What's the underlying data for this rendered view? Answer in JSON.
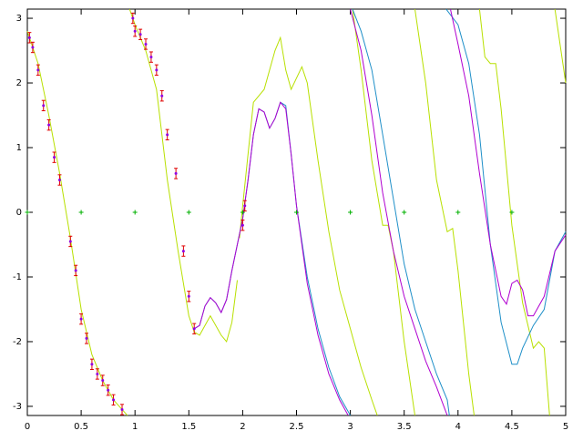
{
  "chart_data": {
    "type": "line",
    "xlim": [
      0,
      5
    ],
    "ylim": [
      -3.14159,
      3.14159
    ],
    "xticks": [
      0,
      0.5,
      1,
      1.5,
      2,
      2.5,
      3,
      3.5,
      4,
      4.5,
      5
    ],
    "yticks": [
      -3,
      -2,
      -1,
      0,
      1,
      2,
      3
    ],
    "series": [
      {
        "color": "#b8e000",
        "x": [
          0,
          0.1,
          0.2,
          0.3,
          0.4,
          0.5,
          0.6,
          0.7,
          0.8,
          0.93,
          0.94,
          0.95,
          1.0,
          1.1,
          1.2,
          1.3,
          1.4,
          1.5,
          1.55,
          1.6,
          1.7,
          1.8,
          1.85,
          1.9,
          1.95,
          1.96,
          1.97,
          2.0,
          2.1,
          2.2,
          2.3,
          2.35,
          2.4,
          2.45,
          2.55,
          2.6,
          2.7,
          2.8,
          2.9,
          3.0,
          3.1,
          3.2,
          3.25,
          3.1,
          3.02,
          3.1,
          3.2,
          3.3,
          3.35,
          3.4,
          3.5,
          3.6,
          3.6,
          3.6,
          3.7,
          3.8,
          3.9,
          3.95,
          4.0,
          4.1,
          4.15,
          4.17,
          4.2,
          4.25,
          4.3,
          4.35,
          4.4,
          4.5,
          4.6,
          4.7,
          4.75,
          4.8,
          4.85,
          4.87,
          4.9,
          5.0
        ],
        "values": [
          2.8,
          2.3,
          1.5,
          0.6,
          -0.4,
          -1.5,
          -2.2,
          -2.6,
          -2.9,
          -3.14,
          null,
          3.14,
          2.9,
          2.5,
          1.9,
          0.5,
          -0.6,
          -1.6,
          -1.85,
          -1.9,
          -1.6,
          -1.9,
          -2.0,
          -1.7,
          -1.05,
          null,
          -0.4,
          0.1,
          1.7,
          1.9,
          2.5,
          2.7,
          2.2,
          1.9,
          2.25,
          2.0,
          0.8,
          -0.3,
          -1.2,
          -1.8,
          -2.4,
          -2.9,
          -3.14,
          null,
          3.14,
          2.2,
          0.8,
          -0.2,
          -0.2,
          -0.6,
          -2.0,
          -3.14,
          null,
          3.14,
          2.0,
          0.5,
          -0.3,
          -0.25,
          -0.9,
          -2.5,
          -3.14,
          null,
          3.14,
          2.4,
          2.3,
          2.3,
          1.6,
          -0.2,
          -1.4,
          -2.1,
          -2.0,
          -2.1,
          -3.14,
          null,
          3.14,
          2.0
        ]
      },
      {
        "color": "#1e8fc8",
        "x": [
          1.55,
          1.6,
          1.65,
          1.7,
          1.75,
          1.8,
          1.85,
          1.9,
          2.0,
          2.05,
          2.1,
          2.15,
          2.2,
          2.25,
          2.3,
          2.35,
          2.4,
          2.45,
          2.5,
          2.6,
          2.7,
          2.8,
          2.9,
          3.0,
          3.01,
          3.02,
          3.1,
          3.2,
          3.3,
          3.4,
          3.5,
          3.6,
          3.7,
          3.8,
          3.9,
          3.92,
          3.9,
          3.89,
          4.0,
          4.1,
          4.2,
          4.3,
          4.4,
          4.5,
          4.55,
          4.6,
          4.7,
          4.8,
          4.9,
          5.0
        ],
        "values": [
          -1.8,
          -1.75,
          -1.45,
          -1.32,
          -1.4,
          -1.55,
          -1.35,
          -0.9,
          -0.1,
          0.5,
          1.2,
          1.6,
          1.55,
          1.3,
          1.45,
          1.7,
          1.65,
          0.9,
          0.1,
          -1.0,
          -1.8,
          -2.4,
          -2.85,
          -3.14,
          null,
          3.14,
          2.8,
          2.2,
          1.2,
          0.2,
          -0.8,
          -1.5,
          -2.0,
          -2.5,
          -2.9,
          -3.14,
          null,
          3.14,
          2.9,
          2.3,
          1.2,
          -0.5,
          -1.7,
          -2.35,
          -2.35,
          -2.1,
          -1.75,
          -1.5,
          -0.6,
          -0.3
        ]
      },
      {
        "color": "#b000d0",
        "x": [
          1.55,
          1.6,
          1.65,
          1.7,
          1.75,
          1.8,
          1.85,
          1.9,
          2.0,
          2.05,
          2.1,
          2.15,
          2.2,
          2.25,
          2.3,
          2.35,
          2.4,
          2.45,
          2.5,
          2.6,
          2.7,
          2.8,
          2.9,
          2.98,
          2.99,
          3.0,
          3.1,
          3.2,
          3.3,
          3.4,
          3.5,
          3.6,
          3.7,
          3.8,
          3.9,
          3.91,
          3.93,
          4.0,
          4.1,
          4.2,
          4.3,
          4.4,
          4.45,
          4.5,
          4.55,
          4.6,
          4.65,
          4.7,
          4.8,
          4.9,
          5.0
        ],
        "values": [
          -1.8,
          -1.75,
          -1.45,
          -1.32,
          -1.4,
          -1.55,
          -1.35,
          -0.9,
          -0.1,
          0.5,
          1.2,
          1.6,
          1.55,
          1.3,
          1.45,
          1.7,
          1.6,
          0.9,
          0.1,
          -1.1,
          -1.9,
          -2.5,
          -2.9,
          -3.14,
          null,
          3.14,
          2.5,
          1.5,
          0.3,
          -0.6,
          -1.3,
          -1.8,
          -2.3,
          -2.7,
          -3.14,
          null,
          3.14,
          2.6,
          1.8,
          0.6,
          -0.5,
          -1.3,
          -1.42,
          -1.1,
          -1.05,
          -1.2,
          -1.6,
          -1.6,
          -1.3,
          -0.6,
          -0.35
        ]
      }
    ],
    "measured": {
      "color": "#e00000",
      "marker_color": "#9000e0",
      "x": [
        0.02,
        0.05,
        0.1,
        0.15,
        0.2,
        0.25,
        0.3,
        0.4,
        0.45,
        0.5,
        0.55,
        0.6,
        0.65,
        0.7,
        0.75,
        0.8,
        0.88,
        0.98,
        1.0,
        1.05,
        1.1,
        1.15,
        1.2,
        1.25,
        1.3,
        1.38,
        1.45,
        1.5,
        1.55,
        2.0,
        2.02
      ],
      "values": [
        2.7,
        2.55,
        2.2,
        1.65,
        1.35,
        0.85,
        0.5,
        -0.45,
        -0.9,
        -1.65,
        -1.95,
        -2.35,
        -2.5,
        -2.6,
        -2.75,
        -2.9,
        -3.05,
        3.0,
        2.8,
        2.75,
        2.6,
        2.4,
        2.2,
        1.8,
        1.2,
        0.6,
        -0.6,
        -1.3,
        -1.8,
        -0.2,
        0.1
      ],
      "errors": [
        0.08,
        0.08,
        0.08,
        0.08,
        0.08,
        0.08,
        0.08,
        0.08,
        0.08,
        0.08,
        0.08,
        0.08,
        0.08,
        0.08,
        0.08,
        0.08,
        0.08,
        0.08,
        0.08,
        0.08,
        0.08,
        0.08,
        0.08,
        0.08,
        0.08,
        0.08,
        0.08,
        0.08,
        0.08,
        0.08,
        0.08
      ]
    },
    "reference": {
      "color": "#00b000",
      "x": [
        0,
        0.5,
        1,
        1.5,
        2,
        2.5,
        3,
        3.5,
        4,
        4.5
      ],
      "values": [
        0,
        0,
        0,
        0,
        0,
        0,
        0,
        0,
        0,
        0
      ]
    }
  }
}
